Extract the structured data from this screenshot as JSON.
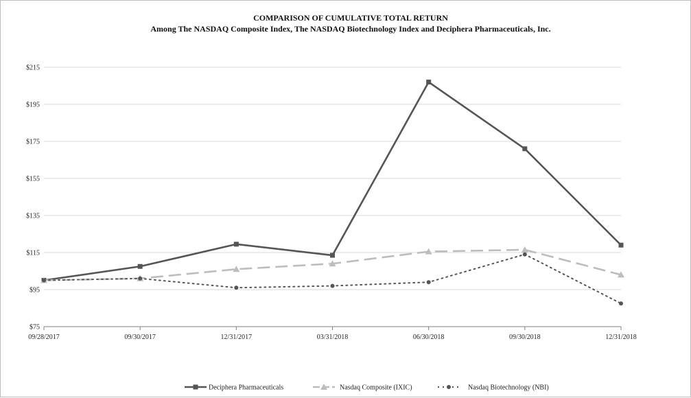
{
  "chart_data": {
    "type": "line",
    "title": "COMPARISON OF CUMULATIVE TOTAL RETURN",
    "subtitle": "Among The NASDAQ Composite Index, The NASDAQ Biotechnology Index and Deciphera Pharmaceuticals, Inc.",
    "xlabel": "",
    "ylabel": "",
    "categories": [
      "09/28/2017",
      "09/30/2017",
      "12/31/2017",
      "03/31/2018",
      "06/30/2018",
      "09/30/2018",
      "12/31/2018"
    ],
    "ylim": [
      75,
      215
    ],
    "yticks": [
      75,
      95,
      115,
      135,
      155,
      175,
      195,
      215
    ],
    "ytick_labels": [
      "$75",
      "$95",
      "$115",
      "$135",
      "$155",
      "$175",
      "$195",
      "$215"
    ],
    "grid": true,
    "legend_position": "bottom",
    "series": [
      {
        "name": "Deciphera Pharmaceuticals",
        "values": [
          100,
          107.5,
          119.5,
          113.5,
          207,
          171,
          119
        ],
        "color": "#555555",
        "style": "solid",
        "marker": "square"
      },
      {
        "name": "Nasdaq Composite (IXIC)",
        "values": [
          100,
          101,
          106,
          109,
          115.5,
          116.5,
          103
        ],
        "color": "#bdbdbd",
        "style": "dashed",
        "marker": "triangle"
      },
      {
        "name": "Nasdaq Biotechnology (NBI)",
        "values": [
          100,
          101,
          96,
          97,
          99,
          114,
          87.5
        ],
        "color": "#555555",
        "style": "dotted",
        "marker": "circle"
      }
    ]
  }
}
